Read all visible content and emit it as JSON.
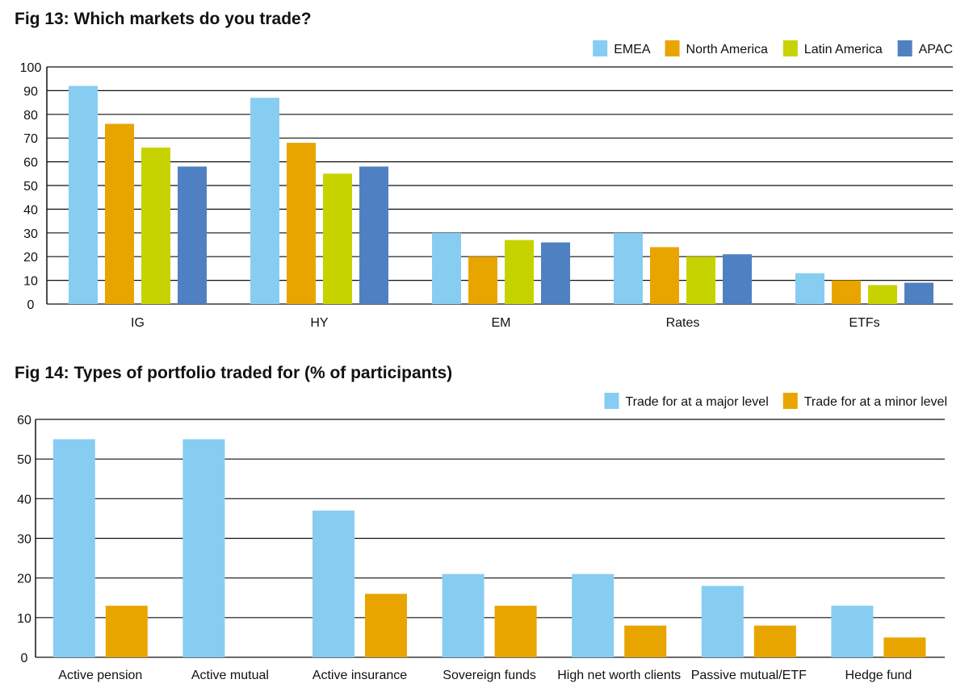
{
  "chart_data": [
    {
      "type": "bar",
      "title": "Fig 13: Which markets do you trade?",
      "categories": [
        "IG",
        "HY",
        "EM",
        "Rates",
        "ETFs"
      ],
      "series": [
        {
          "name": "EMEA",
          "color": "#87cdf2",
          "values": [
            92,
            87,
            30,
            30,
            13
          ]
        },
        {
          "name": "North America",
          "color": "#e8a500",
          "values": [
            76,
            68,
            20,
            24,
            10
          ]
        },
        {
          "name": "Latin America",
          "color": "#c7d300",
          "values": [
            66,
            55,
            27,
            20,
            8
          ]
        },
        {
          "name": "APAC",
          "color": "#4f81c2",
          "values": [
            58,
            58,
            26,
            21,
            9
          ]
        }
      ],
      "ylim": [
        0,
        100
      ],
      "yticks": [
        0,
        10,
        20,
        30,
        40,
        50,
        60,
        70,
        80,
        90,
        100
      ],
      "grid": true,
      "legend": "top-right"
    },
    {
      "type": "bar",
      "title": "Fig 14: Types of portfolio traded for (% of participants)",
      "categories": [
        "Active pension",
        "Active mutual",
        "Active insurance",
        "Sovereign funds",
        "High net worth clients",
        "Passive mutual/ETF",
        "Hedge fund"
      ],
      "series": [
        {
          "name": "Trade for at a major level",
          "color": "#87cdf2",
          "values": [
            55,
            55,
            37,
            21,
            21,
            18,
            13
          ]
        },
        {
          "name": "Trade for at a minor level",
          "color": "#e8a500",
          "values": [
            13,
            0,
            16,
            13,
            8,
            8,
            5
          ]
        }
      ],
      "ylim": [
        0,
        60
      ],
      "yticks": [
        0,
        10,
        20,
        30,
        40,
        50,
        60
      ],
      "grid": true,
      "legend": "top-right"
    }
  ]
}
